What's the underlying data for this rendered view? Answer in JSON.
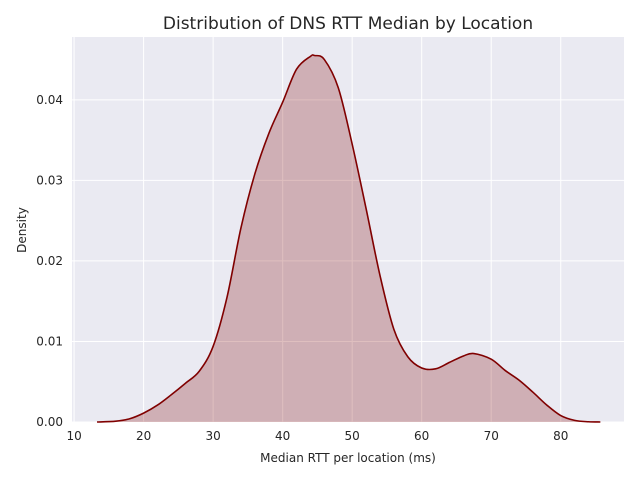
{
  "chart_data": {
    "type": "area",
    "title": "Distribution of DNS RTT Median by Location",
    "xlabel": "Median RTT per location (ms)",
    "ylabel": "Density",
    "xlim": [
      9.7,
      89.1
    ],
    "ylim": [
      0.0,
      0.0478
    ],
    "xticks": [
      10,
      20,
      30,
      40,
      50,
      60,
      70,
      80
    ],
    "yticks": [
      0.0,
      0.01,
      0.02,
      0.03,
      0.04
    ],
    "ytick_labels": [
      "0.00",
      "0.01",
      "0.02",
      "0.03",
      "0.04"
    ],
    "grid": true,
    "legend": null,
    "series": [
      {
        "color": "#800000",
        "fill_alpha": 0.25,
        "x": [
          13.3,
          16,
          18,
          20,
          22,
          24,
          26,
          28,
          30,
          32,
          34,
          36,
          38,
          40,
          42,
          44,
          44.6,
          46,
          48,
          50,
          52,
          54,
          56,
          58,
          60,
          62,
          64,
          66,
          67.5,
          70,
          72,
          74,
          76,
          78,
          80,
          82,
          84,
          85.7
        ],
        "y": [
          0.0,
          0.0001,
          0.0004,
          0.0011,
          0.0021,
          0.0034,
          0.0048,
          0.0063,
          0.0094,
          0.0155,
          0.0241,
          0.0308,
          0.0358,
          0.0397,
          0.0438,
          0.0454,
          0.0455,
          0.045,
          0.0415,
          0.0345,
          0.0265,
          0.0182,
          0.0115,
          0.0081,
          0.0067,
          0.0066,
          0.0074,
          0.0082,
          0.0085,
          0.0078,
          0.0064,
          0.0052,
          0.0037,
          0.0021,
          0.0008,
          0.0002,
          3e-05,
          0.0
        ]
      }
    ]
  }
}
